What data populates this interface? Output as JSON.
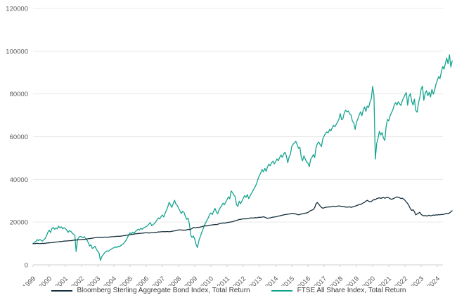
{
  "chart": {
    "y_axis": {
      "tick_labels": [
        "0",
        "20000",
        "40000",
        "60000",
        "80000",
        "100000",
        "120000"
      ],
      "tick_values": [
        0,
        20000,
        40000,
        60000,
        80000,
        100000,
        120000
      ]
    },
    "x_axis": {
      "year_labels": [
        "1999",
        "2000",
        "2001",
        "2002",
        "2003",
        "2004",
        "2005",
        "2006",
        "2007",
        "2008",
        "2009",
        "2010",
        "2011",
        "2012",
        "2013",
        "2014",
        "2015",
        "2016",
        "2017",
        "2018",
        "2019",
        "2020",
        "2021",
        "2022",
        "2023",
        "2024"
      ]
    },
    "colors": {
      "bond_line": "#152f3c",
      "equity_line": "#14a38f",
      "gridline": "#e9e9e9",
      "axis": "#cfcfcf",
      "tick_text": "#595959",
      "legend_text": "#3d3d3d"
    }
  },
  "chart_data": {
    "type": "line",
    "title": "",
    "xlabel": "",
    "ylabel": "",
    "x_start_year": 1999,
    "x_step": "monthly",
    "ylim": [
      0,
      120000
    ],
    "grid": "horizontal",
    "legend_position": "bottom-center",
    "series": [
      {
        "name": "Bloomberg Sterling Aggregate Bond Index, Total Return",
        "color": "#152f3c",
        "values": [
          10000,
          9900,
          10000,
          10100,
          10000,
          9900,
          10000,
          10100,
          10000,
          10100,
          10200,
          10300,
          10300,
          10400,
          10400,
          10500,
          10600,
          10700,
          10700,
          10800,
          10900,
          10900,
          11000,
          11100,
          11100,
          11200,
          11200,
          11300,
          11300,
          11400,
          11500,
          11600,
          11600,
          11700,
          11700,
          11800,
          11800,
          11900,
          11900,
          12000,
          12100,
          12200,
          12300,
          12400,
          12500,
          12600,
          12700,
          12800,
          12800,
          12900,
          12900,
          12800,
          12900,
          13000,
          13000,
          12900,
          13000,
          13100,
          13100,
          13200,
          13200,
          13300,
          13300,
          13400,
          13300,
          13400,
          13500,
          13600,
          13700,
          13800,
          13900,
          14000,
          14100,
          14200,
          14300,
          14400,
          14500,
          14600,
          14700,
          14700,
          14800,
          14800,
          14900,
          15000,
          15000,
          15000,
          14900,
          15000,
          15000,
          15100,
          15100,
          15200,
          15300,
          15400,
          15400,
          15500,
          15500,
          15600,
          15500,
          15600,
          15600,
          15500,
          15600,
          15700,
          15800,
          15900,
          16000,
          16200,
          16300,
          16400,
          16300,
          16200,
          16300,
          16200,
          16400,
          16600,
          16500,
          16700,
          17000,
          17500,
          17400,
          17300,
          17600,
          17500,
          17700,
          17800,
          18000,
          18200,
          18300,
          18200,
          18400,
          18500,
          18600,
          18700,
          18800,
          18900,
          18800,
          19000,
          19200,
          19400,
          19500,
          19600,
          19500,
          19700,
          19800,
          19900,
          20000,
          20100,
          20200,
          20400,
          20600,
          20800,
          21000,
          21200,
          21300,
          21400,
          21500,
          21600,
          21500,
          21600,
          21700,
          21900,
          22000,
          21900,
          22000,
          22100,
          22000,
          22200,
          22300,
          22200,
          22400,
          22500,
          22300,
          22000,
          21800,
          21900,
          22000,
          22200,
          22300,
          22400,
          22500,
          22600,
          22800,
          22900,
          23100,
          23200,
          23400,
          23500,
          23600,
          23700,
          23800,
          23900,
          24000,
          24100,
          23900,
          23800,
          23600,
          23400,
          23600,
          23800,
          23900,
          24100,
          24200,
          24300,
          24500,
          25000,
          25400,
          25600,
          25900,
          26800,
          28600,
          29200,
          28400,
          27600,
          26900,
          26500,
          26700,
          26900,
          27100,
          27000,
          27200,
          27100,
          27300,
          27500,
          27200,
          27400,
          27500,
          27600,
          27500,
          27300,
          27400,
          27200,
          27000,
          27100,
          27000,
          27200,
          26900,
          27100,
          27300,
          27500,
          27700,
          27900,
          28300,
          28200,
          28600,
          29000,
          29300,
          29800,
          30200,
          29800,
          29500,
          29700,
          30100,
          30600,
          30400,
          31000,
          31200,
          31400,
          31100,
          31300,
          31500,
          31200,
          31400,
          31600,
          31400,
          30900,
          30700,
          30900,
          31200,
          31500,
          31800,
          31600,
          31400,
          31000,
          31200,
          30800,
          30200,
          29400,
          28700,
          27600,
          26300,
          25400,
          25800,
          24900,
          23400,
          23800,
          24200,
          24600,
          23600,
          23200,
          22900,
          23100,
          22800,
          23000,
          23200,
          22900,
          23100,
          23300,
          23200,
          23400,
          23300,
          23500,
          23400,
          23600,
          23500,
          23700,
          23900,
          24100,
          24000,
          24300,
          24800,
          25300
        ]
      },
      {
        "name": "FTSE All Share Index, Total Return",
        "color": "#14a38f",
        "values": [
          9800,
          10500,
          10900,
          11800,
          11300,
          11900,
          11500,
          11100,
          11700,
          12400,
          13600,
          15300,
          16200,
          15100,
          17000,
          17500,
          16600,
          17300,
          16800,
          18100,
          17300,
          17800,
          16900,
          17400,
          17000,
          16300,
          15200,
          16000,
          15700,
          14900,
          14300,
          13900,
          6200,
          11800,
          13000,
          13300,
          13100,
          12700,
          13200,
          12300,
          11600,
          10400,
          8800,
          9400,
          7700,
          8100,
          8700,
          7300,
          6400,
          5500,
          2100,
          3800,
          4700,
          5600,
          6100,
          6600,
          6300,
          7000,
          7300,
          7800,
          8000,
          8400,
          8100,
          8700,
          8400,
          9000,
          9400,
          9900,
          10600,
          11500,
          12700,
          14100,
          15000,
          14500,
          15300,
          14800,
          15600,
          16200,
          16700,
          16300,
          17100,
          16600,
          17300,
          17600,
          17900,
          18400,
          19100,
          19800,
          18300,
          18800,
          19300,
          20100,
          21000,
          22000,
          21500,
          22600,
          23300,
          22400,
          24100,
          25600,
          27200,
          29300,
          28100,
          26900,
          28600,
          30200,
          28400,
          27800,
          26500,
          25300,
          24000,
          25100,
          24600,
          22700,
          21300,
          21900,
          19200,
          13900,
          12800,
          13500,
          12000,
          9500,
          8100,
          11200,
          13100,
          14800,
          16500,
          18200,
          19600,
          20800,
          22000,
          23600,
          24300,
          23500,
          25100,
          26400,
          24800,
          23900,
          25600,
          26800,
          27700,
          28900,
          28100,
          29400,
          30600,
          31800,
          30900,
          34600,
          33800,
          32700,
          31900,
          28200,
          27400,
          29800,
          28600,
          29900,
          31200,
          32400,
          31600,
          32900,
          31000,
          32200,
          33400,
          34500,
          35600,
          36800,
          38200,
          40300,
          41800,
          43100,
          44600,
          43500,
          45200,
          43800,
          45900,
          47100,
          46400,
          47800,
          48600,
          47200,
          48300,
          49600,
          48700,
          50200,
          51400,
          50300,
          51900,
          52700,
          51000,
          47800,
          50500,
          51800,
          55500,
          56400,
          57200,
          57800,
          56300,
          54500,
          55100,
          50600,
          48700,
          51000,
          49500,
          48100,
          47700,
          45900,
          49300,
          50400,
          51600,
          50200,
          54800,
          56700,
          57500,
          56300,
          55400,
          58900,
          60300,
          61500,
          62200,
          61800,
          63400,
          62700,
          64100,
          65300,
          64600,
          65800,
          66900,
          68200,
          70800,
          67900,
          68500,
          71300,
          72400,
          71600,
          72000,
          70700,
          70100,
          67200,
          66500,
          63400,
          66700,
          68300,
          70100,
          71600,
          69800,
          72400,
          73900,
          71800,
          74300,
          73600,
          76100,
          77800,
          83500,
          79200,
          49500,
          56800,
          59200,
          62500,
          60800,
          61900,
          59400,
          58200,
          64700,
          68100,
          67400,
          69800,
          71200,
          72600,
          74700,
          75900,
          74800,
          76300,
          75400,
          74600,
          76800,
          78200,
          79600,
          80600,
          74700,
          78900,
          80200,
          76400,
          74800,
          77600,
          72300,
          71400,
          75800,
          78300,
          82400,
          83600,
          77000,
          80300,
          81500,
          79200,
          80800,
          78600,
          82100,
          79900,
          81800,
          84600,
          86300,
          88100,
          87200,
          90400,
          92800,
          91600,
          94300,
          96800,
          94100,
          98300,
          92600,
          95400
        ]
      }
    ]
  }
}
